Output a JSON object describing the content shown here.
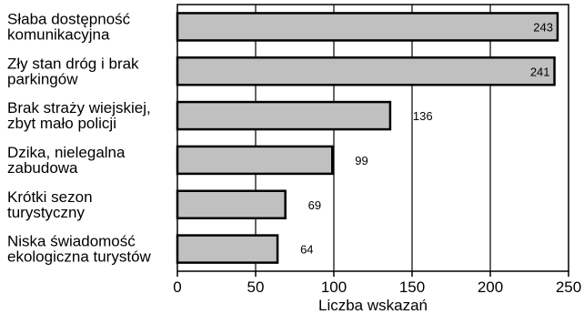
{
  "chart_data": {
    "type": "bar",
    "orientation": "horizontal",
    "categories": [
      [
        "Słaba dostępność",
        "komunikacyjna"
      ],
      [
        "Zły stan dróg i brak",
        "parkingów"
      ],
      [
        "Brak straży wiejskiej,",
        "zbyt mało policji"
      ],
      [
        "Dzika, nielegalna",
        "zabudowa"
      ],
      [
        "Krótki sezon",
        "turystyczny"
      ],
      [
        "Niska świadomość",
        "ekologiczna turystów"
      ]
    ],
    "values": [
      243,
      241,
      136,
      99,
      69,
      64
    ],
    "xlabel": "Liczba wskazań",
    "xlim": [
      0,
      250
    ],
    "xticks": [
      0,
      50,
      100,
      150,
      200,
      250
    ],
    "grid": true,
    "colors": {
      "bar_fill": "#c0c0c0",
      "bar_stroke": "#000000",
      "grid": "#000000",
      "background": "#ffffff"
    }
  }
}
